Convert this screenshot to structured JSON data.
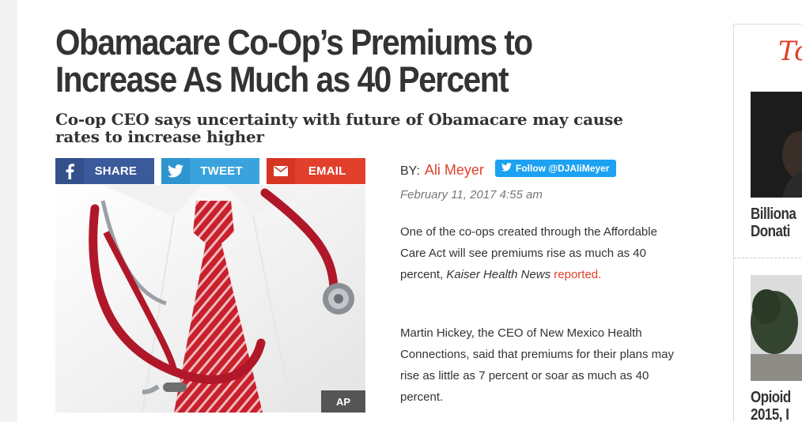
{
  "article": {
    "headline": "Obamacare Co-Op’s Premiums to Increase As Much as 40 Percent",
    "subhead": "Co-op CEO says uncertainty with future of Obamacare may cause rates to increase higher",
    "share": {
      "facebook": {
        "label": "SHARE",
        "icon": "facebook-icon",
        "color": "#3b5a9b"
      },
      "twitter": {
        "label": "TWEET",
        "icon": "twitter-icon",
        "color": "#3aa3dd"
      },
      "email": {
        "label": "EMAIL",
        "icon": "envelope-icon",
        "color": "#e2402d"
      }
    },
    "image": {
      "credit": "AP"
    },
    "byline": {
      "prefix": "BY:",
      "author": "Ali Meyer",
      "follow_label": "Follow @DJAliMeyer"
    },
    "date": "February 11, 2017 4:55 am",
    "paragraphs": [
      {
        "text_before": "One of the co-ops created through the Affordable Care Act will see premiums rise as much as 40 percent,",
        "source": "Kaiser Health News",
        "link": "reported."
      },
      {
        "text": "Martin Hickey, the CEO of New Mexico Health Connections, said that premiums for their plans may rise as little as 7 percent or soar as much as 40 percent."
      }
    ]
  },
  "sidebar": {
    "header": "To",
    "items": [
      {
        "title_line1": "Billiona",
        "title_line2": "Donati"
      },
      {
        "title_line1": "Opioid",
        "title_line2": "2015, I"
      }
    ]
  },
  "colors": {
    "accent": "#e2402d",
    "twitter": "#1da1f2"
  }
}
